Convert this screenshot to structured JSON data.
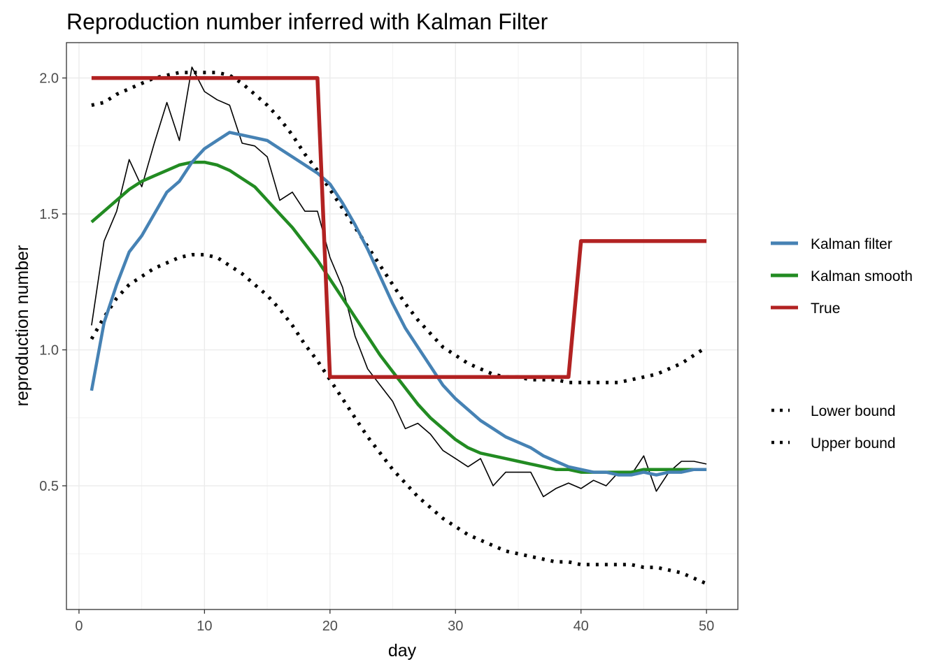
{
  "chart_data": {
    "type": "line",
    "title": "Reproduction number inferred with Kalman Filter",
    "xlabel": "day",
    "ylabel": "reproduction number",
    "xlim": [
      -1,
      52.5
    ],
    "ylim": [
      0.045,
      2.13
    ],
    "x_ticks": [
      0,
      10,
      20,
      30,
      40,
      50
    ],
    "x_tick_labels": [
      "0",
      "10",
      "20",
      "30",
      "40",
      "50"
    ],
    "y_ticks": [
      0.5,
      1.0,
      1.5,
      2.0
    ],
    "y_tick_labels": [
      "0.5",
      "1.0",
      "1.5",
      "2.0"
    ],
    "grid": true,
    "legend_position": "right",
    "colors": {
      "kalman_filter": "#4682b4",
      "kalman_smooth": "#228b22",
      "true": "#b22222",
      "observed": "#000000",
      "bounds": "#228b22"
    },
    "legend": [
      {
        "key": "kalman_filter",
        "label": "Kalman filter",
        "style": "solid"
      },
      {
        "key": "kalman_smooth",
        "label": "Kalman smooth",
        "style": "solid"
      },
      {
        "key": "true",
        "label": "True",
        "style": "solid"
      },
      {
        "key": "lower",
        "label": "Lower bound",
        "style": "dotted"
      },
      {
        "key": "upper",
        "label": "Upper bound",
        "style": "dotted"
      }
    ],
    "x": [
      1,
      2,
      3,
      4,
      5,
      6,
      7,
      8,
      9,
      10,
      11,
      12,
      13,
      14,
      15,
      16,
      17,
      18,
      19,
      20,
      21,
      22,
      23,
      24,
      25,
      26,
      27,
      28,
      29,
      30,
      31,
      32,
      33,
      34,
      35,
      36,
      37,
      38,
      39,
      40,
      41,
      42,
      43,
      44,
      45,
      46,
      47,
      48,
      49,
      50
    ],
    "series": [
      {
        "key": "observed",
        "values": [
          1.09,
          1.4,
          1.51,
          1.7,
          1.6,
          1.76,
          1.91,
          1.77,
          2.04,
          1.95,
          1.92,
          1.9,
          1.76,
          1.75,
          1.71,
          1.55,
          1.58,
          1.51,
          1.51,
          1.34,
          1.23,
          1.05,
          0.93,
          0.87,
          0.81,
          0.71,
          0.73,
          0.69,
          0.63,
          0.6,
          0.57,
          0.6,
          0.5,
          0.55,
          0.55,
          0.55,
          0.46,
          0.49,
          0.51,
          0.49,
          0.52,
          0.5,
          0.55,
          0.54,
          0.61,
          0.48,
          0.55,
          0.59,
          0.59,
          0.58
        ]
      },
      {
        "key": "kalman_filter",
        "values": [
          0.85,
          1.1,
          1.24,
          1.36,
          1.42,
          1.5,
          1.58,
          1.62,
          1.69,
          1.74,
          1.77,
          1.8,
          1.79,
          1.78,
          1.77,
          1.74,
          1.71,
          1.68,
          1.65,
          1.61,
          1.54,
          1.46,
          1.37,
          1.27,
          1.17,
          1.08,
          1.01,
          0.94,
          0.87,
          0.82,
          0.78,
          0.74,
          0.71,
          0.68,
          0.66,
          0.64,
          0.61,
          0.59,
          0.57,
          0.56,
          0.55,
          0.55,
          0.54,
          0.54,
          0.55,
          0.54,
          0.55,
          0.55,
          0.56,
          0.56
        ]
      },
      {
        "key": "kalman_smooth",
        "values": [
          1.47,
          1.51,
          1.55,
          1.59,
          1.62,
          1.64,
          1.66,
          1.68,
          1.69,
          1.69,
          1.68,
          1.66,
          1.63,
          1.6,
          1.55,
          1.5,
          1.45,
          1.39,
          1.33,
          1.26,
          1.19,
          1.12,
          1.05,
          0.98,
          0.92,
          0.86,
          0.8,
          0.75,
          0.71,
          0.67,
          0.64,
          0.62,
          0.61,
          0.6,
          0.59,
          0.58,
          0.57,
          0.56,
          0.56,
          0.55,
          0.55,
          0.55,
          0.55,
          0.55,
          0.56,
          0.56,
          0.56,
          0.56,
          0.56,
          0.56
        ]
      },
      {
        "key": "true",
        "values": [
          2.0,
          2.0,
          2.0,
          2.0,
          2.0,
          2.0,
          2.0,
          2.0,
          2.0,
          2.0,
          2.0,
          2.0,
          2.0,
          2.0,
          2.0,
          2.0,
          2.0,
          2.0,
          2.0,
          0.9,
          0.9,
          0.9,
          0.9,
          0.9,
          0.9,
          0.9,
          0.9,
          0.9,
          0.9,
          0.9,
          0.9,
          0.9,
          0.9,
          0.9,
          0.9,
          0.9,
          0.9,
          0.9,
          0.9,
          1.4,
          1.4,
          1.4,
          1.4,
          1.4,
          1.4,
          1.4,
          1.4,
          1.4,
          1.4,
          1.4
        ]
      },
      {
        "key": "lower",
        "values": [
          1.04,
          1.12,
          1.19,
          1.24,
          1.27,
          1.3,
          1.32,
          1.34,
          1.35,
          1.35,
          1.34,
          1.31,
          1.28,
          1.24,
          1.2,
          1.15,
          1.09,
          1.02,
          0.96,
          0.89,
          0.82,
          0.75,
          0.68,
          0.62,
          0.56,
          0.51,
          0.46,
          0.42,
          0.38,
          0.35,
          0.32,
          0.3,
          0.28,
          0.26,
          0.25,
          0.24,
          0.23,
          0.22,
          0.22,
          0.21,
          0.21,
          0.21,
          0.21,
          0.21,
          0.2,
          0.2,
          0.19,
          0.18,
          0.16,
          0.14
        ]
      },
      {
        "key": "upper",
        "values": [
          1.9,
          1.91,
          1.94,
          1.96,
          1.98,
          2.0,
          2.01,
          2.02,
          2.02,
          2.02,
          2.02,
          2.01,
          1.98,
          1.94,
          1.9,
          1.85,
          1.79,
          1.72,
          1.66,
          1.59,
          1.52,
          1.45,
          1.38,
          1.31,
          1.24,
          1.17,
          1.11,
          1.06,
          1.01,
          0.98,
          0.95,
          0.93,
          0.91,
          0.9,
          0.9,
          0.89,
          0.89,
          0.89,
          0.88,
          0.88,
          0.88,
          0.88,
          0.88,
          0.89,
          0.9,
          0.91,
          0.93,
          0.95,
          0.98,
          1.01
        ]
      }
    ]
  }
}
